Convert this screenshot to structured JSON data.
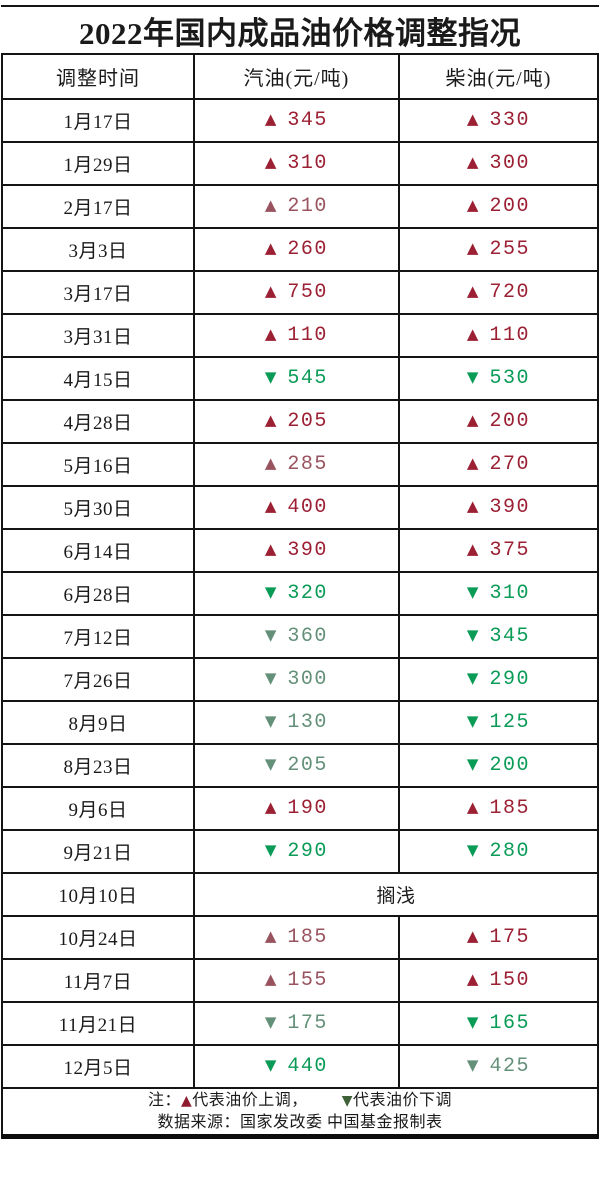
{
  "title": "2022年国内成品油价格调整指况",
  "symbols": {
    "up": "▲",
    "down": "▼"
  },
  "colors": {
    "up": "#9c2033",
    "up_muted": "#99535f",
    "down": "#0a9b57",
    "down_muted": "#649079",
    "note_up": "#8e1b2e",
    "note_down": "#3e6137",
    "border": "#141414"
  },
  "chart_data": {
    "type": "table",
    "title": "2022年国内成品油价格调整指况",
    "columns": [
      "调整时间",
      "汽油(元/吨)",
      "柴油(元/吨)"
    ],
    "rows": [
      {
        "date": "1月17日",
        "gasoline": {
          "direction": "up",
          "value": 345,
          "tone": "bright"
        },
        "diesel": {
          "direction": "up",
          "value": 330,
          "tone": "bright"
        }
      },
      {
        "date": "1月29日",
        "gasoline": {
          "direction": "up",
          "value": 310,
          "tone": "bright"
        },
        "diesel": {
          "direction": "up",
          "value": 300,
          "tone": "bright"
        }
      },
      {
        "date": "2月17日",
        "gasoline": {
          "direction": "up",
          "value": 210,
          "tone": "muted"
        },
        "diesel": {
          "direction": "up",
          "value": 200,
          "tone": "bright"
        }
      },
      {
        "date": "3月3日",
        "gasoline": {
          "direction": "up",
          "value": 260,
          "tone": "bright"
        },
        "diesel": {
          "direction": "up",
          "value": 255,
          "tone": "bright"
        }
      },
      {
        "date": "3月17日",
        "gasoline": {
          "direction": "up",
          "value": 750,
          "tone": "bright"
        },
        "diesel": {
          "direction": "up",
          "value": 720,
          "tone": "bright"
        }
      },
      {
        "date": "3月31日",
        "gasoline": {
          "direction": "up",
          "value": 110,
          "tone": "bright"
        },
        "diesel": {
          "direction": "up",
          "value": 110,
          "tone": "bright"
        }
      },
      {
        "date": "4月15日",
        "gasoline": {
          "direction": "down",
          "value": 545,
          "tone": "bright"
        },
        "diesel": {
          "direction": "down",
          "value": 530,
          "tone": "bright"
        }
      },
      {
        "date": "4月28日",
        "gasoline": {
          "direction": "up",
          "value": 205,
          "tone": "bright"
        },
        "diesel": {
          "direction": "up",
          "value": 200,
          "tone": "bright"
        }
      },
      {
        "date": "5月16日",
        "gasoline": {
          "direction": "up",
          "value": 285,
          "tone": "muted"
        },
        "diesel": {
          "direction": "up",
          "value": 270,
          "tone": "bright"
        }
      },
      {
        "date": "5月30日",
        "gasoline": {
          "direction": "up",
          "value": 400,
          "tone": "bright"
        },
        "diesel": {
          "direction": "up",
          "value": 390,
          "tone": "bright"
        }
      },
      {
        "date": "6月14日",
        "gasoline": {
          "direction": "up",
          "value": 390,
          "tone": "bright"
        },
        "diesel": {
          "direction": "up",
          "value": 375,
          "tone": "bright"
        }
      },
      {
        "date": "6月28日",
        "gasoline": {
          "direction": "down",
          "value": 320,
          "tone": "bright"
        },
        "diesel": {
          "direction": "down",
          "value": 310,
          "tone": "bright"
        }
      },
      {
        "date": "7月12日",
        "gasoline": {
          "direction": "down",
          "value": 360,
          "tone": "muted"
        },
        "diesel": {
          "direction": "down",
          "value": 345,
          "tone": "bright"
        }
      },
      {
        "date": "7月26日",
        "gasoline": {
          "direction": "down",
          "value": 300,
          "tone": "muted"
        },
        "diesel": {
          "direction": "down",
          "value": 290,
          "tone": "bright"
        }
      },
      {
        "date": "8月9日",
        "gasoline": {
          "direction": "down",
          "value": 130,
          "tone": "muted"
        },
        "diesel": {
          "direction": "down",
          "value": 125,
          "tone": "bright"
        }
      },
      {
        "date": "8月23日",
        "gasoline": {
          "direction": "down",
          "value": 205,
          "tone": "muted"
        },
        "diesel": {
          "direction": "down",
          "value": 200,
          "tone": "bright"
        }
      },
      {
        "date": "9月6日",
        "gasoline": {
          "direction": "up",
          "value": 190,
          "tone": "bright"
        },
        "diesel": {
          "direction": "up",
          "value": 185,
          "tone": "bright"
        }
      },
      {
        "date": "9月21日",
        "gasoline": {
          "direction": "down",
          "value": 290,
          "tone": "bright"
        },
        "diesel": {
          "direction": "down",
          "value": 280,
          "tone": "bright"
        }
      },
      {
        "date": "10月10日",
        "merged_text": "搁浅"
      },
      {
        "date": "10月24日",
        "gasoline": {
          "direction": "up",
          "value": 185,
          "tone": "muted"
        },
        "diesel": {
          "direction": "up",
          "value": 175,
          "tone": "bright"
        }
      },
      {
        "date": "11月7日",
        "gasoline": {
          "direction": "up",
          "value": 155,
          "tone": "muted"
        },
        "diesel": {
          "direction": "up",
          "value": 150,
          "tone": "bright"
        }
      },
      {
        "date": "11月21日",
        "gasoline": {
          "direction": "down",
          "value": 175,
          "tone": "muted"
        },
        "diesel": {
          "direction": "down",
          "value": 165,
          "tone": "bright"
        }
      },
      {
        "date": "12月5日",
        "gasoline": {
          "direction": "down",
          "value": 440,
          "tone": "bright"
        },
        "diesel": {
          "direction": "down",
          "value": 425,
          "tone": "muted"
        }
      }
    ],
    "legend": {
      "up": "▲代表油价上调",
      "down": "▼代表油价下调"
    },
    "source": "数据来源：国家发改委  中国基金报制表"
  },
  "footer": {
    "note_prefix": "注：",
    "up_symbol": "▲",
    "up_label": "代表油价上调，",
    "down_symbol": "▼",
    "down_label": "代表油价下调",
    "source": "数据来源：国家发改委  中国基金报制表"
  }
}
